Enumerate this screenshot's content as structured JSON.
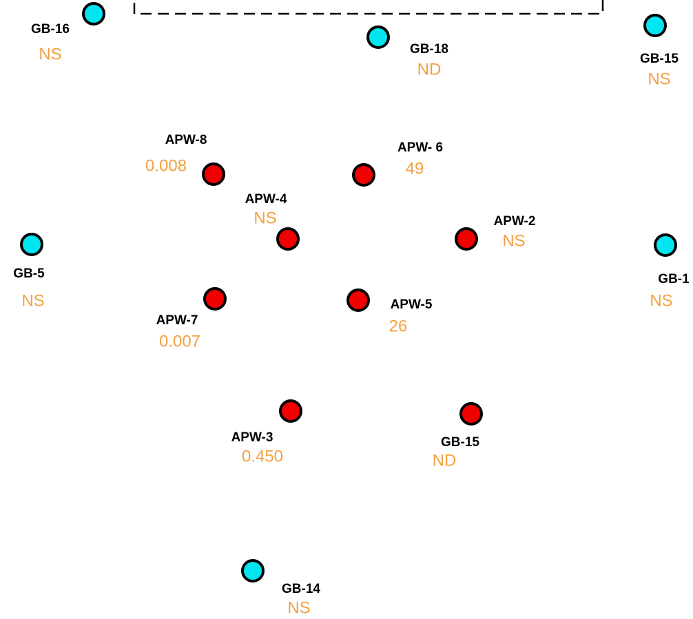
{
  "wells": [
    {
      "label": "GB-16",
      "value": "NS",
      "kind": "cyan"
    },
    {
      "label": "GB-18",
      "value": "ND",
      "kind": "cyan"
    },
    {
      "label": "GB-15",
      "value": "NS",
      "kind": "cyan"
    },
    {
      "label": "APW-8",
      "value": "0.008",
      "kind": "red"
    },
    {
      "label": "APW- 6",
      "value": "49",
      "kind": "red"
    },
    {
      "label": "APW-4",
      "value": "NS",
      "kind": "red"
    },
    {
      "label": "APW-2",
      "value": "NS",
      "kind": "red"
    },
    {
      "label": "GB-5",
      "value": "NS",
      "kind": "cyan"
    },
    {
      "label": "GB-1",
      "value": "NS",
      "kind": "cyan"
    },
    {
      "label": "APW-7",
      "value": "0.007",
      "kind": "red"
    },
    {
      "label": "APW-5",
      "value": "26",
      "kind": "red"
    },
    {
      "label": "APW-3",
      "value": "0.450",
      "kind": "red"
    },
    {
      "label": "GB-15",
      "value": "ND",
      "kind": "red"
    },
    {
      "label": "GB-14",
      "value": "NS",
      "kind": "cyan"
    }
  ]
}
